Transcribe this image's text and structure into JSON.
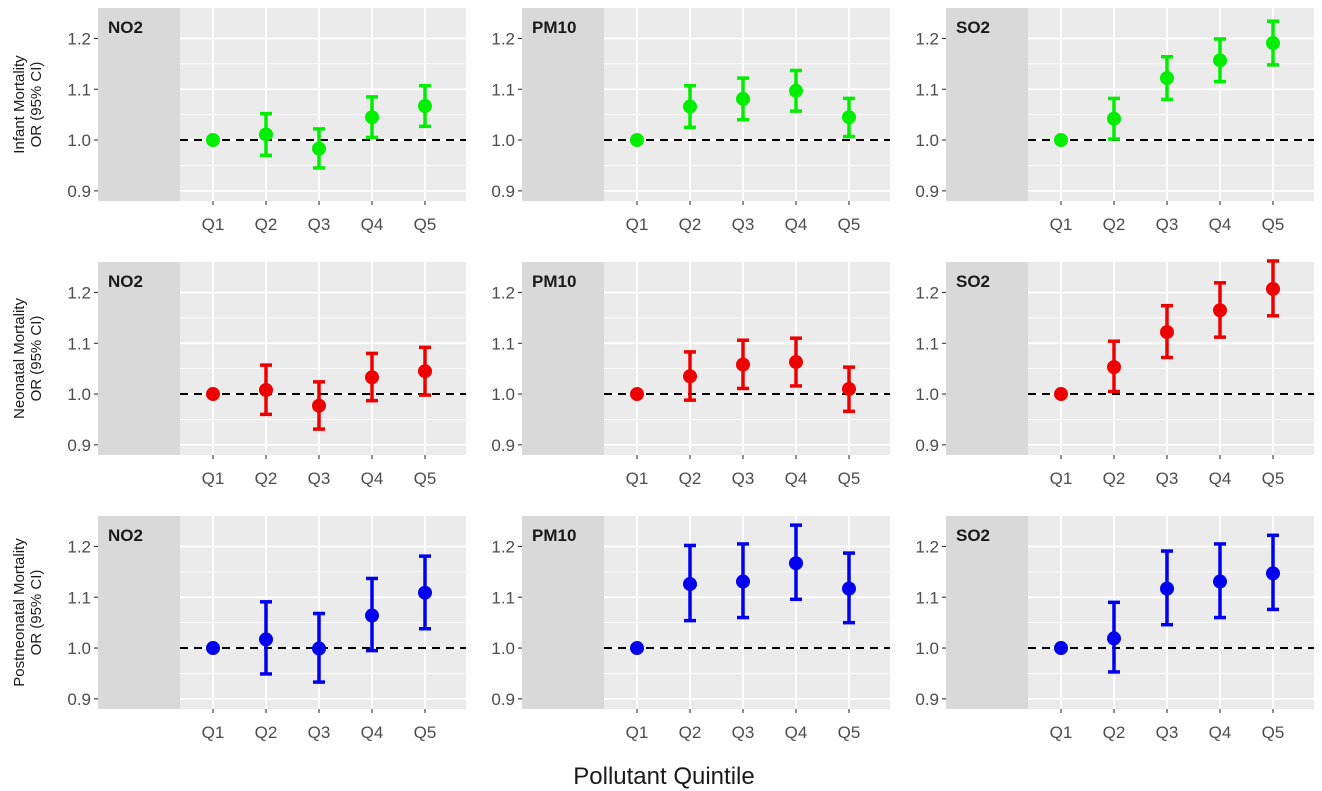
{
  "chart_data": {
    "type": "scatter",
    "subtype": "point-range (odds ratio with 95% CI), faceted grid 3x3",
    "xlabel": "Pollutant Quintile",
    "categories": [
      "Q1",
      "Q2",
      "Q3",
      "Q4",
      "Q5"
    ],
    "y_ticks": [
      "0.9",
      "1.0",
      "1.1",
      "1.2"
    ],
    "ylim": [
      0.88,
      1.26
    ],
    "reference_line": 1.0,
    "grid": true,
    "legend": "none",
    "rows": [
      {
        "label_lines": [
          "Infant Mortality",
          "OR (95% CI)"
        ],
        "color": "#00ee00",
        "panels": [
          {
            "pollutant": "NO2",
            "or": [
              1.0,
              1.011,
              0.983,
              1.045,
              1.067
            ],
            "lower": [
              1.0,
              0.97,
              0.945,
              1.005,
              1.027
            ],
            "upper": [
              1.0,
              1.052,
              1.022,
              1.085,
              1.107
            ]
          },
          {
            "pollutant": "PM10",
            "or": [
              1.0,
              1.066,
              1.081,
              1.097,
              1.045
            ],
            "lower": [
              1.0,
              1.025,
              1.04,
              1.057,
              1.007
            ],
            "upper": [
              1.0,
              1.107,
              1.122,
              1.137,
              1.082
            ]
          },
          {
            "pollutant": "SO2",
            "or": [
              1.0,
              1.042,
              1.122,
              1.157,
              1.191
            ],
            "lower": [
              1.0,
              1.002,
              1.08,
              1.115,
              1.148
            ],
            "upper": [
              1.0,
              1.082,
              1.164,
              1.199,
              1.234
            ]
          }
        ]
      },
      {
        "label_lines": [
          "Neonatal Mortality",
          "OR (95% CI)"
        ],
        "color": "#ee0000",
        "panels": [
          {
            "pollutant": "NO2",
            "or": [
              1.0,
              1.008,
              0.977,
              1.033,
              1.045
            ],
            "lower": [
              1.0,
              0.96,
              0.931,
              0.987,
              0.998
            ],
            "upper": [
              1.0,
              1.057,
              1.024,
              1.08,
              1.092
            ]
          },
          {
            "pollutant": "PM10",
            "or": [
              1.0,
              1.035,
              1.058,
              1.063,
              1.01
            ],
            "lower": [
              1.0,
              0.988,
              1.011,
              1.016,
              0.966
            ],
            "upper": [
              1.0,
              1.083,
              1.106,
              1.11,
              1.053
            ]
          },
          {
            "pollutant": "SO2",
            "or": [
              1.0,
              1.053,
              1.122,
              1.165,
              1.207
            ],
            "lower": [
              1.0,
              1.005,
              1.072,
              1.112,
              1.154
            ],
            "upper": [
              1.0,
              1.104,
              1.174,
              1.219,
              1.262
            ]
          }
        ]
      },
      {
        "label_lines": [
          "Postneonatal Mortality",
          "OR (95% CI)"
        ],
        "color": "#0000ee",
        "panels": [
          {
            "pollutant": "NO2",
            "or": [
              1.0,
              1.017,
              0.999,
              1.064,
              1.109
            ],
            "lower": [
              1.0,
              0.949,
              0.933,
              0.995,
              1.038
            ],
            "upper": [
              1.0,
              1.091,
              1.068,
              1.137,
              1.181
            ]
          },
          {
            "pollutant": "PM10",
            "or": [
              1.0,
              1.126,
              1.131,
              1.167,
              1.117
            ],
            "lower": [
              1.0,
              1.054,
              1.06,
              1.096,
              1.05
            ],
            "upper": [
              1.0,
              1.202,
              1.205,
              1.242,
              1.187
            ]
          },
          {
            "pollutant": "SO2",
            "or": [
              1.0,
              1.019,
              1.117,
              1.131,
              1.147
            ],
            "lower": [
              1.0,
              0.953,
              1.046,
              1.06,
              1.076
            ],
            "upper": [
              1.0,
              1.09,
              1.191,
              1.205,
              1.222
            ]
          }
        ]
      }
    ]
  }
}
